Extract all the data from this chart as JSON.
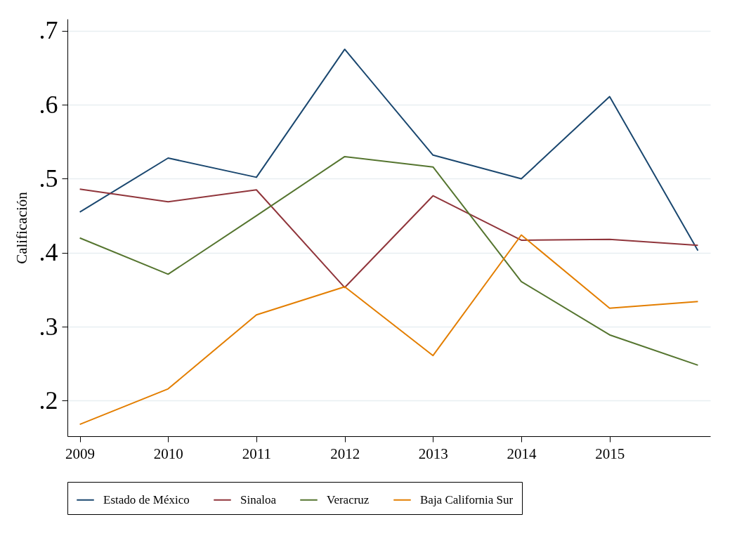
{
  "chart_data": {
    "type": "line",
    "ylabel": "Calificación",
    "x": [
      2009,
      2010,
      2011,
      2012,
      2013,
      2014,
      2015,
      2016
    ],
    "series": [
      {
        "name": "Estado de México",
        "color": "#1a476f",
        "values": [
          0.455,
          0.528,
          0.502,
          0.675,
          0.532,
          0.5,
          0.611,
          0.403
        ]
      },
      {
        "name": "Sinaloa",
        "color": "#90353b",
        "values": [
          0.486,
          0.469,
          0.485,
          0.353,
          0.477,
          0.417,
          0.418,
          0.41
        ]
      },
      {
        "name": "Veracruz",
        "color": "#55752f",
        "values": [
          0.42,
          0.371,
          0.45,
          0.53,
          0.516,
          0.361,
          0.289,
          0.248
        ]
      },
      {
        "name": "Baja California Sur",
        "color": "#e37e00",
        "values": [
          0.168,
          0.216,
          0.316,
          0.354,
          0.261,
          0.424,
          0.325,
          0.334
        ]
      }
    ],
    "xlim": [
      2008.86,
      2016.14
    ],
    "xticks": [
      2009,
      2010,
      2011,
      2012,
      2013,
      2014,
      2015
    ],
    "ylim": [
      0.152,
      0.716
    ],
    "yticks": [
      {
        "value": 0.2,
        "label": ".2"
      },
      {
        "value": 0.3,
        "label": ".3"
      },
      {
        "value": 0.4,
        "label": ".4"
      },
      {
        "value": 0.5,
        "label": ".5"
      },
      {
        "value": 0.6,
        "label": ".6"
      },
      {
        "value": 0.7,
        "label": ".7"
      }
    ],
    "grid": "y",
    "legend": "bottom",
    "marker": "none",
    "line_style": "solid"
  }
}
